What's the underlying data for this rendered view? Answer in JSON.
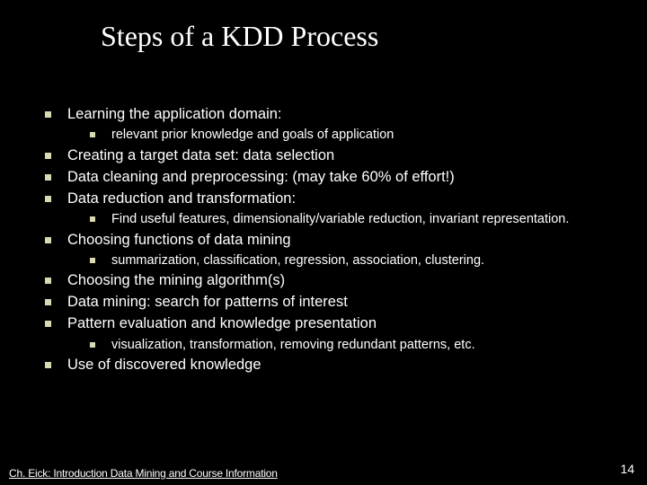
{
  "title": "Steps of a KDD Process",
  "items": {
    "i0": "Learning the application domain:",
    "i0s0": "relevant prior knowledge and goals of application",
    "i1": "Creating a target data set: data selection",
    "i2": "Data cleaning and preprocessing: (may take 60% of effort!)",
    "i3": "Data reduction and transformation:",
    "i3s0": "Find useful features, dimensionality/variable reduction, invariant representation.",
    "i4": "Choosing functions of data mining",
    "i4s0": "summarization, classification, regression, association, clustering.",
    "i5": "Choosing the mining algorithm(s)",
    "i6": "Data mining: search for patterns of interest",
    "i7": "Pattern evaluation and knowledge presentation",
    "i7s0": "visualization, transformation, removing redundant patterns, etc.",
    "i8": "Use of discovered knowledge"
  },
  "footer": "Ch. Eick: Introduction Data Mining and Course Information",
  "pagenum": "14",
  "colors": {
    "background": "#000000",
    "text": "#ffffff",
    "bullet": "#d9d9b3"
  }
}
